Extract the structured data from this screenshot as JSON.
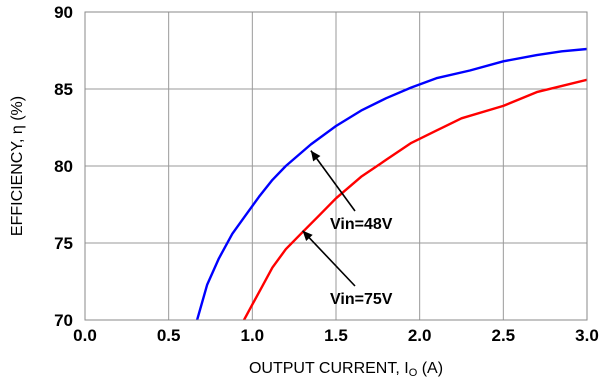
{
  "chart_data": {
    "type": "line",
    "title": "",
    "xlabel": "OUTPUT CURRENT, I",
    "xlabel_subscript": "O",
    "xlabel_unit": " (A)",
    "ylabel": "EFFICIENCY, η  (%)",
    "xlim": [
      0,
      3
    ],
    "ylim": [
      70,
      90
    ],
    "x_ticks": [
      "0.0",
      "0.5",
      "1.0",
      "1.5",
      "2.0",
      "2.5",
      "3.0"
    ],
    "y_ticks": [
      "70",
      "75",
      "80",
      "85",
      "90"
    ],
    "grid": true,
    "series": [
      {
        "name": "Vin=48V",
        "color": "#0000ff",
        "x": [
          0.67,
          0.73,
          0.8,
          0.88,
          0.96,
          1.04,
          1.12,
          1.2,
          1.35,
          1.5,
          1.65,
          1.8,
          1.95,
          2.1,
          2.3,
          2.5,
          2.7,
          2.85,
          3.0
        ],
        "y": [
          70.0,
          72.3,
          74.0,
          75.6,
          76.8,
          78.0,
          79.1,
          80.0,
          81.4,
          82.6,
          83.6,
          84.4,
          85.1,
          85.7,
          86.2,
          86.8,
          87.2,
          87.45,
          87.6
        ]
      },
      {
        "name": "Vin=75V",
        "color": "#ff0000",
        "x": [
          0.95,
          1.0,
          1.06,
          1.12,
          1.2,
          1.3,
          1.4,
          1.5,
          1.65,
          1.8,
          1.95,
          2.1,
          2.25,
          2.5,
          2.7,
          2.85,
          3.0
        ],
        "y": [
          70.0,
          71.0,
          72.2,
          73.4,
          74.6,
          75.7,
          76.8,
          77.9,
          79.3,
          80.4,
          81.5,
          82.3,
          83.1,
          83.9,
          84.8,
          85.2,
          85.6
        ]
      }
    ],
    "annotations": [
      {
        "text": "Vin=48V",
        "series": "Vin=48V",
        "point_to": [
          1.35,
          81.0
        ]
      },
      {
        "text": "Vin=75V",
        "series": "Vin=75V",
        "point_to": [
          1.3,
          75.8
        ]
      }
    ]
  }
}
